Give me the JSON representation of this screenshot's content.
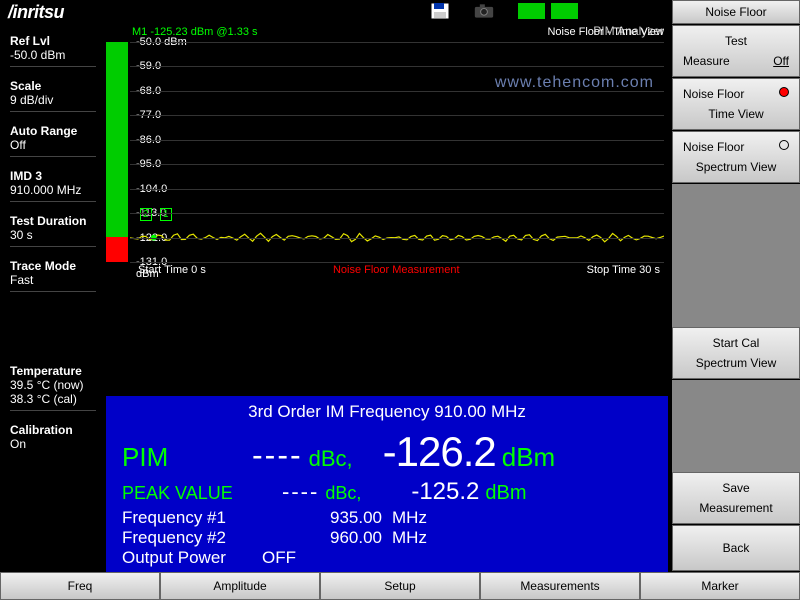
{
  "logo": "/inritsu",
  "analyzer_label": "PIM Analyzer",
  "watermark": "www.tehencom.com",
  "leftpanel": [
    {
      "label": "Ref Lvl",
      "value": "-50.0 dBm"
    },
    {
      "label": "Scale",
      "value": "9 dB/div"
    },
    {
      "label": "Auto Range",
      "value": "Off"
    },
    {
      "label": "IMD 3",
      "value": "910.000 MHz"
    },
    {
      "label": "Test Duration",
      "value": "30 s"
    },
    {
      "label": "Trace Mode",
      "value": "Fast"
    },
    {
      "label": "Temperature",
      "value": "39.5 °C (now)\n38.3 °C (cal)"
    },
    {
      "label": "Calibration",
      "value": "On"
    }
  ],
  "rightpanel": {
    "header": "Noise Floor",
    "test": {
      "label": "Test",
      "sub1": "Measure",
      "sub2": "Off"
    },
    "view1": {
      "l1": "Noise Floor",
      "l2": "Time View",
      "selected": true
    },
    "view2": {
      "l1": "Noise Floor",
      "l2": "Spectrum View",
      "selected": false
    },
    "startcal": {
      "l1": "Start Cal",
      "l2": "Spectrum View"
    },
    "save": {
      "l1": "Save",
      "l2": "Measurement"
    },
    "back": "Back"
  },
  "bottom_menu": [
    "Freq",
    "Amplitude",
    "Setup",
    "Measurements",
    "Marker"
  ],
  "chart": {
    "marker_text": "M1 -125.23 dBm @1.33 s",
    "view_label": "Noise Floor - Time View",
    "y_top_db": -50.0,
    "y_bottom_db": -131.0,
    "y_labels": [
      "-50.0 dBm",
      "-59.0",
      "-68.0",
      "-77.0",
      "-86.0",
      "-95.0",
      "-104.0",
      "-113.0",
      "-122.0",
      "-131.0 dBm"
    ],
    "x_start_label": "Start Time 0 s",
    "x_stop_label": "Stop Time  30 s",
    "center_label": "Noise Floor Measurement",
    "trace_db_approx": -122.0,
    "trace_color": "#e6e600",
    "grid_color": "#333333",
    "leftbar_color": "#00cc00",
    "leftbar_bottom_color": "#ff0000",
    "marker_boxes": [
      "2",
      "1"
    ]
  },
  "results": {
    "title": "3rd Order IM Frequency   910.00 MHz",
    "pim_label": "PIM",
    "pim_dbc": "----",
    "pim_dbc_unit": "dBc,",
    "pim_dbm": "-126.2",
    "pim_dbm_unit": "dBm",
    "peak_label": "PEAK VALUE",
    "peak_dbc": "----",
    "peak_dbc_unit": "dBc,",
    "peak_dbm": "-125.2",
    "peak_dbm_unit": "dBm",
    "freq1_label": "Frequency #1",
    "freq1_val": "935.00",
    "freq1_unit": "MHz",
    "freq2_label": "Frequency #2",
    "freq2_val": "960.00",
    "freq2_unit": "MHz",
    "outpwr_label": "Output Power",
    "outpwr_val": "OFF"
  }
}
